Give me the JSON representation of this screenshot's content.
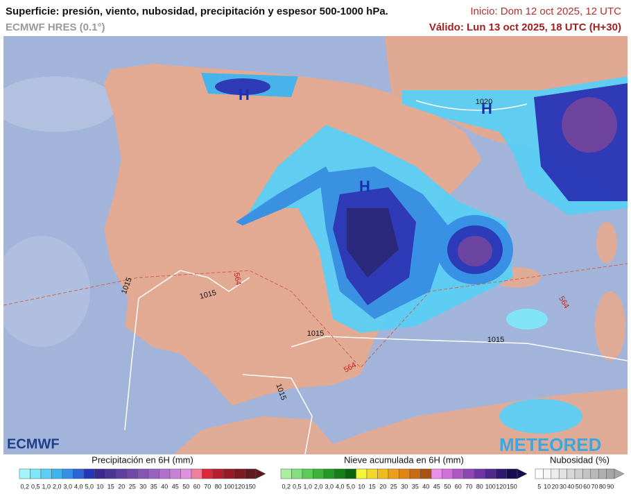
{
  "header": {
    "title": "Superficie: presión, viento, nubosidad, precipitación y espesor 500-1000 hPa.",
    "model": "ECMWF HRES (0.1°)",
    "init": "Inicio: Dom 12 oct 2025, 12 UTC",
    "valid": "Válido: Lun 13 oct 2025, 18 UTC (H+30)"
  },
  "map": {
    "labels": [
      "H",
      "H",
      "H",
      "1020",
      "1015",
      "1015",
      "1015",
      "1015",
      "1015",
      "564",
      "564",
      "564"
    ]
  },
  "logos": {
    "left": "ECMWF",
    "right": "METEORED"
  },
  "legends": [
    {
      "title": "Precipitación en 6H (mm)",
      "labels": [
        "0,2",
        "0,5",
        "1,0",
        "2,0",
        "3,0",
        "4,0",
        "5,0",
        "10",
        "15",
        "20",
        "25",
        "30",
        "35",
        "40",
        "45",
        "50",
        "60",
        "70",
        "80",
        "100",
        "120",
        "150"
      ],
      "colors": [
        "#a6f4fb",
        "#7fe6f8",
        "#5bcff5",
        "#3eb4ef",
        "#3390e6",
        "#2a64d8",
        "#2636b8",
        "#3a2a8f",
        "#4a3596",
        "#5d3fa0",
        "#7048ab",
        "#8554b5",
        "#9a62c0",
        "#b070cb",
        "#c880d6",
        "#e090e0",
        "#f07e9e",
        "#d82a3a",
        "#b81e2e",
        "#981a26",
        "#7a1a22",
        "#5e1a1e"
      ]
    },
    {
      "title": "Nieve acumulada en 6H (mm)",
      "labels": [
        "0,2",
        "0,5",
        "1,0",
        "2,0",
        "3,0",
        "4,0",
        "5,0",
        "10",
        "15",
        "20",
        "25",
        "30",
        "35",
        "40",
        "45",
        "50",
        "60",
        "70",
        "80",
        "100",
        "120",
        "150"
      ],
      "colors": [
        "#a8f0a0",
        "#84e07c",
        "#5ccc58",
        "#3cb43a",
        "#239a26",
        "#138018",
        "#0a6410",
        "#f5f53a",
        "#f2d82a",
        "#efbc20",
        "#eca01a",
        "#e08414",
        "#c86a12",
        "#a85410",
        "#e890e8",
        "#d070d8",
        "#b058c8",
        "#9044b8",
        "#7034a8",
        "#502890",
        "#301870",
        "#180c50"
      ]
    },
    {
      "title": "Nubosidad (%)",
      "labels": [
        "5",
        "10",
        "20",
        "30",
        "40",
        "50",
        "60",
        "70",
        "80",
        "90"
      ],
      "colors": [
        "#ffffff",
        "#f6f6f6",
        "#ececec",
        "#e2e2e2",
        "#d8d8d8",
        "#cecece",
        "#c4c4c4",
        "#bababa",
        "#b0b0b0",
        "#a6a6a6"
      ]
    }
  ]
}
